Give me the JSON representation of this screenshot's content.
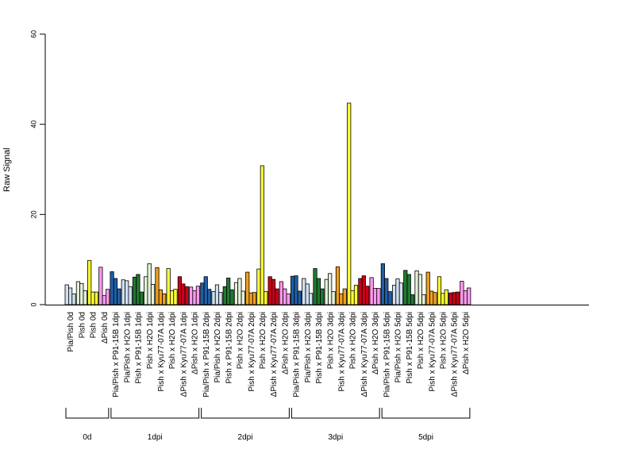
{
  "chart_data": {
    "type": "bar",
    "title": "",
    "xlabel": "",
    "ylabel": "Raw Signal",
    "ylim": [
      0,
      60
    ],
    "yticks": [
      0,
      20,
      40,
      60
    ],
    "grid": false,
    "legend": "none",
    "categories": [
      "Pia/Pish 0d",
      "Pish 0d",
      "Pish 0d",
      "ΔPish 0d",
      "Pia/Pish x P91-15B 1dpi",
      "Pia/Pish x H2O 1dpi",
      "Pish x P91-15B 1dpi",
      "Pish x H2O 1dpi",
      "Pish x Kyu77-07A 1dpi",
      "Pish x H2O 1dpi",
      "ΔPish x Kyu77-07A 1dpi",
      "ΔPish x H2O 1dpi",
      "Pia/Pish x P91-15B 2dpi",
      "Pia/Pish x H2O 2dpi",
      "Pish x P91-15B 2dpi",
      "Pish x H2O 2dpi",
      "Pish x Kyu77-07A 2dpi",
      "Pish x H2O 2dpi",
      "ΔPish x Kyu77-07A 2dpi",
      "ΔPish x H2O 2dpi",
      "Pia/Pish x P91-15B 3dpi",
      "Pia/Pish x H2O 3dpi",
      "Pish x P91-15B 3dpi",
      "Pish x H2O 3dpi",
      "Pish x Kyu77-07A 3dpi",
      "Pish x H2O 3dpi",
      "ΔPish x Kyu77-07A 3dpi",
      "ΔPish x H2O 3dpi",
      "Pia/Pish x P91-15B 5dpi",
      "Pia/Pish x H2O 5dpi",
      "Pish x P91-15B 5dpi",
      "Pish x H2O 5dpi",
      "Pish x Kyu77-07A 5dpi",
      "Pish x H2O 5dpi",
      "ΔPish x Kyu77-07A 5dpi",
      "ΔPish x H2O 5dpi"
    ],
    "colors": [
      "#cfe0f0",
      "#e3f0d8",
      "#ffff33",
      "#ff99ee",
      "#1f5fa8",
      "#cfe0f0",
      "#207a30",
      "#e3f0d8",
      "#f0a020",
      "#ffff33",
      "#cc0018",
      "#ff99ee",
      "#1f5fa8",
      "#cfe0f0",
      "#207a30",
      "#e3f0d8",
      "#f0a020",
      "#ffff33",
      "#cc0018",
      "#ff99ee",
      "#1f5fa8",
      "#cfe0f0",
      "#207a30",
      "#e3f0d8",
      "#f0a020",
      "#ffff33",
      "#cc0018",
      "#ff99ee",
      "#1f5fa8",
      "#cfe0f0",
      "#207a30",
      "#e3f0d8",
      "#f0a020",
      "#ffff33",
      "#cc0018",
      "#ff99ee"
    ],
    "values": [
      [
        4.4,
        3.7,
        2.4
      ],
      [
        5.1,
        4.7,
        3.1
      ],
      [
        9.8,
        2.8,
        2.8
      ],
      [
        8.3,
        2.0,
        3.4
      ],
      [
        7.3,
        5.8,
        3.5
      ],
      [
        5.5,
        5.3,
        4.0
      ],
      [
        6.1,
        6.7,
        2.8
      ],
      [
        6.2,
        9.1,
        4.5
      ],
      [
        8.2,
        3.3,
        2.4
      ],
      [
        8.0,
        3.1,
        3.4
      ],
      [
        6.2,
        4.6,
        4.0
      ],
      [
        3.9,
        3.1,
        4.1
      ],
      [
        4.8,
        6.2,
        3.4
      ],
      [
        2.9,
        4.4,
        2.7
      ],
      [
        4.0,
        5.9,
        3.3
      ],
      [
        4.9,
        5.8,
        3.0
      ],
      [
        7.2,
        2.6,
        2.7
      ],
      [
        7.9,
        30.8,
        2.9
      ],
      [
        6.2,
        5.6,
        3.5
      ],
      [
        5.1,
        3.5,
        2.4
      ],
      [
        6.3,
        6.4,
        3.0
      ],
      [
        5.8,
        4.6,
        2.5
      ],
      [
        8.0,
        5.8,
        3.5
      ],
      [
        5.6,
        6.9,
        2.9
      ],
      [
        8.4,
        2.4,
        3.5
      ],
      [
        44.7,
        3.1,
        4.3
      ],
      [
        5.8,
        6.4,
        4.1
      ],
      [
        6.0,
        3.6,
        3.6
      ],
      [
        9.1,
        5.8,
        2.9
      ],
      [
        4.3,
        5.7,
        4.8
      ],
      [
        7.6,
        6.7,
        2.2
      ],
      [
        7.5,
        6.7,
        2.2
      ],
      [
        7.2,
        3.0,
        2.7
      ],
      [
        6.2,
        2.5,
        3.3
      ],
      [
        2.6,
        2.7,
        2.8
      ],
      [
        5.2,
        3.1,
        3.7
      ]
    ],
    "groups": [
      {
        "label": "0d",
        "start": 0,
        "end": 3
      },
      {
        "label": "1dpi",
        "start": 4,
        "end": 11
      },
      {
        "label": "2dpi",
        "start": 12,
        "end": 19
      },
      {
        "label": "3dpi",
        "start": 20,
        "end": 27
      },
      {
        "label": "5dpi",
        "start": 28,
        "end": 35
      }
    ]
  }
}
